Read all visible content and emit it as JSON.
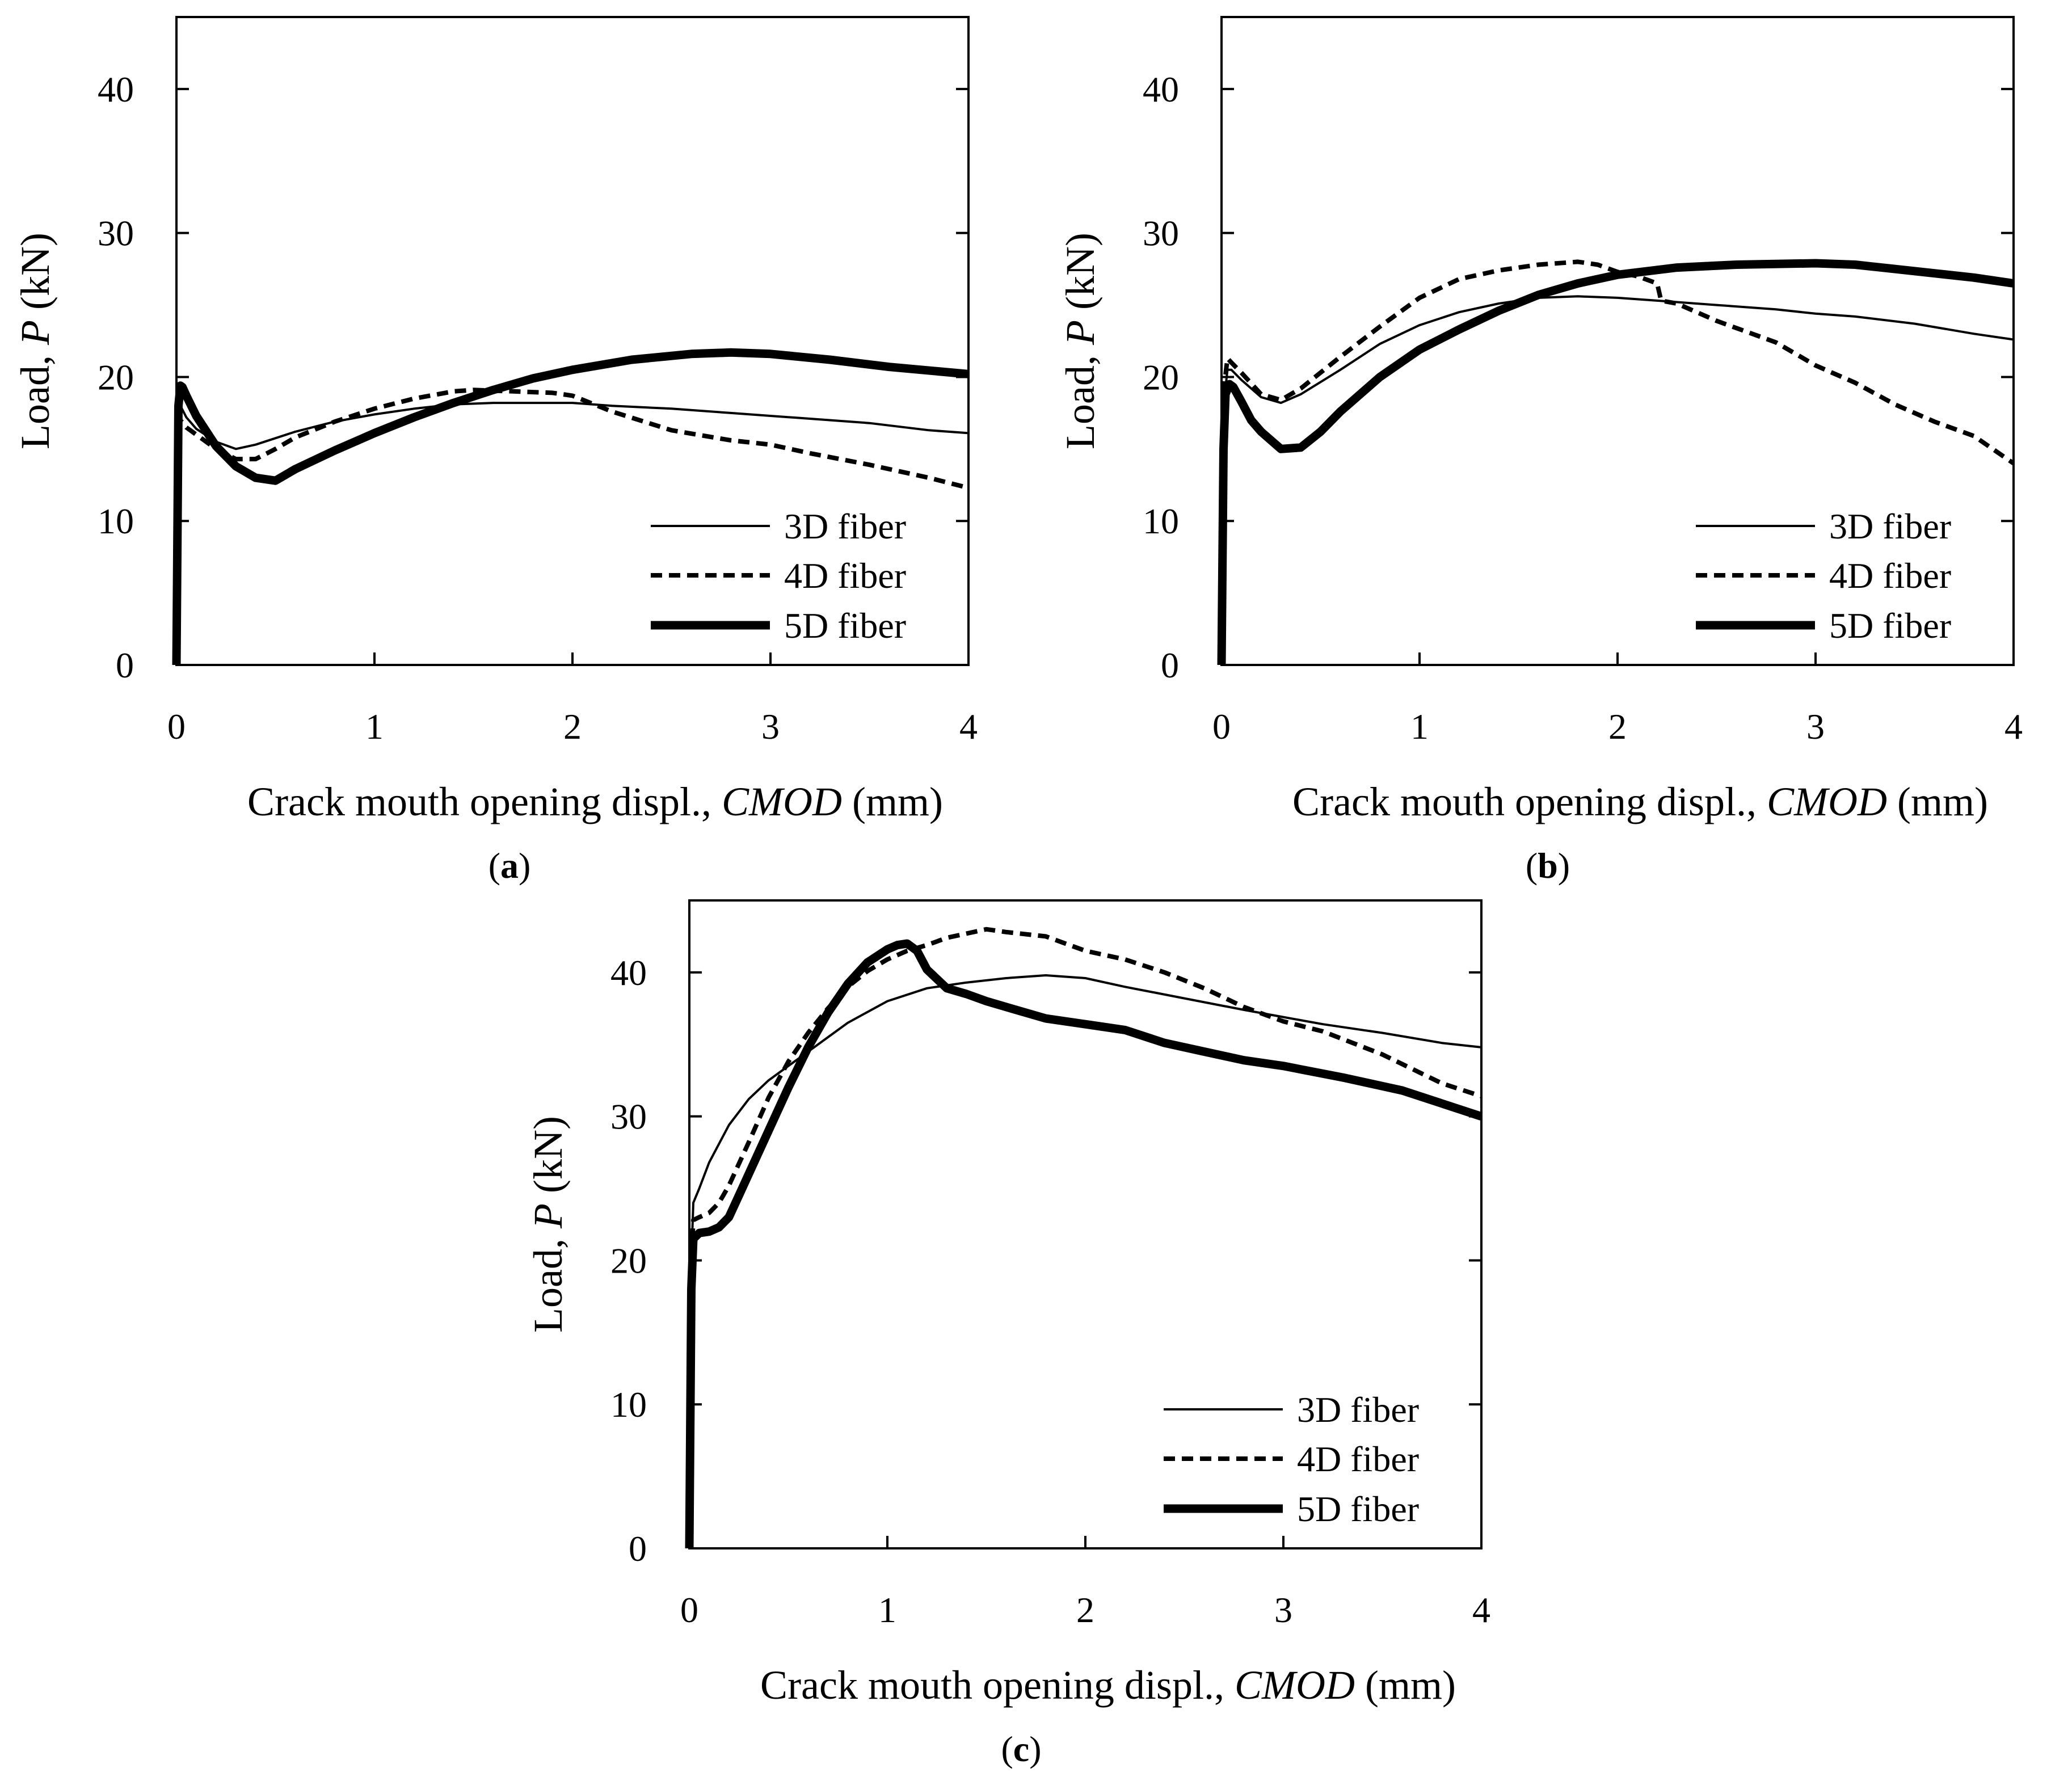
{
  "figure": {
    "xlabel_prefix": "Crack mouth opening displ., ",
    "xlabel_var": "CMOD",
    "xlabel_unit": " (mm)",
    "ylabel_prefix": "Load, ",
    "ylabel_var": "P",
    "ylabel_unit": " (kN)",
    "panel_labels": [
      "a",
      "b",
      "c"
    ],
    "colors": {
      "line": "#000000",
      "background": "#ffffff"
    }
  },
  "chart_data": [
    {
      "panel": "a",
      "type": "line",
      "xlabel": "Crack mouth opening displ., CMOD (mm)",
      "ylabel": "Load, P (kN)",
      "xlim": [
        0,
        4
      ],
      "ylim": [
        0,
        45
      ],
      "xticks": [
        0,
        1,
        2,
        3,
        4
      ],
      "yticks": [
        0,
        10,
        20,
        30,
        40
      ],
      "legend_position": "bottom-right",
      "series": [
        {
          "name": "3D fiber",
          "style": "thin",
          "x": [
            0,
            0.01,
            0.02,
            0.05,
            0.1,
            0.2,
            0.3,
            0.4,
            0.6,
            0.8,
            1.0,
            1.2,
            1.4,
            1.6,
            1.8,
            2.0,
            2.2,
            2.5,
            2.8,
            3.0,
            3.2,
            3.5,
            3.8,
            4.0
          ],
          "y": [
            0,
            16,
            18,
            17.2,
            16.4,
            15.5,
            15.0,
            15.3,
            16.2,
            16.9,
            17.4,
            17.8,
            18.1,
            18.2,
            18.2,
            18.2,
            18.0,
            17.8,
            17.5,
            17.3,
            17.1,
            16.8,
            16.3,
            16.1
          ]
        },
        {
          "name": "4D fiber",
          "style": "dashed",
          "x": [
            0,
            0.01,
            0.02,
            0.05,
            0.1,
            0.2,
            0.3,
            0.4,
            0.5,
            0.6,
            0.8,
            1.0,
            1.2,
            1.4,
            1.5,
            1.7,
            1.9,
            2.0,
            2.2,
            2.5,
            2.8,
            3.0,
            3.2,
            3.5,
            3.8,
            4.0
          ],
          "y": [
            0,
            16,
            17,
            16.5,
            16.0,
            15.0,
            14.3,
            14.3,
            15.0,
            15.8,
            16.9,
            17.8,
            18.5,
            19.0,
            19.1,
            19.0,
            18.9,
            18.7,
            17.6,
            16.3,
            15.6,
            15.3,
            14.7,
            13.9,
            13.0,
            12.3
          ]
        },
        {
          "name": "5D fiber",
          "style": "thick",
          "x": [
            0,
            0.01,
            0.02,
            0.03,
            0.05,
            0.1,
            0.2,
            0.3,
            0.4,
            0.5,
            0.6,
            0.8,
            1.0,
            1.2,
            1.4,
            1.6,
            1.8,
            2.0,
            2.3,
            2.6,
            2.8,
            3.0,
            3.3,
            3.6,
            4.0
          ],
          "y": [
            0,
            18,
            19.4,
            19.3,
            18.7,
            17.3,
            15.2,
            13.8,
            13.0,
            12.8,
            13.6,
            14.9,
            16.1,
            17.2,
            18.2,
            19.1,
            19.9,
            20.5,
            21.2,
            21.6,
            21.7,
            21.6,
            21.2,
            20.7,
            20.2
          ]
        }
      ]
    },
    {
      "panel": "b",
      "type": "line",
      "xlabel": "Crack mouth opening displ., CMOD (mm)",
      "ylabel": "Load, P (kN)",
      "xlim": [
        0,
        4
      ],
      "ylim": [
        0,
        45
      ],
      "xticks": [
        0,
        1,
        2,
        3,
        4
      ],
      "yticks": [
        0,
        10,
        20,
        30,
        40
      ],
      "legend_position": "bottom-right",
      "series": [
        {
          "name": "3D fiber",
          "style": "thin",
          "x": [
            0,
            0.01,
            0.03,
            0.05,
            0.1,
            0.2,
            0.3,
            0.4,
            0.6,
            0.8,
            1.0,
            1.2,
            1.4,
            1.6,
            1.8,
            2.0,
            2.2,
            2.5,
            2.8,
            3.0,
            3.2,
            3.5,
            3.8,
            4.0
          ],
          "y": [
            0,
            18,
            20.5,
            20.5,
            19.8,
            18.6,
            18.2,
            18.8,
            20.5,
            22.3,
            23.6,
            24.5,
            25.1,
            25.5,
            25.6,
            25.5,
            25.3,
            25.0,
            24.7,
            24.4,
            24.2,
            23.7,
            23.0,
            22.6
          ]
        },
        {
          "name": "4D fiber",
          "style": "dashed",
          "x": [
            0,
            0.01,
            0.03,
            0.05,
            0.1,
            0.2,
            0.3,
            0.4,
            0.6,
            0.8,
            1.0,
            1.2,
            1.4,
            1.6,
            1.8,
            1.9,
            2.0,
            2.1,
            2.2,
            2.22,
            2.3,
            2.5,
            2.8,
            3.0,
            3.2,
            3.4,
            3.6,
            3.8,
            4.0
          ],
          "y": [
            0,
            19,
            21.3,
            21,
            20.3,
            18.8,
            18.4,
            19.2,
            21.4,
            23.5,
            25.5,
            26.8,
            27.4,
            27.8,
            28.0,
            27.8,
            27.3,
            27.0,
            26.5,
            25.3,
            25.1,
            23.9,
            22.4,
            20.8,
            19.6,
            18.1,
            16.9,
            15.9,
            14.0
          ]
        },
        {
          "name": "5D fiber",
          "style": "thick",
          "x": [
            0,
            0.01,
            0.02,
            0.04,
            0.06,
            0.1,
            0.15,
            0.2,
            0.3,
            0.4,
            0.5,
            0.6,
            0.8,
            1.0,
            1.2,
            1.4,
            1.6,
            1.8,
            2.0,
            2.3,
            2.6,
            3.0,
            3.2,
            3.4,
            3.6,
            3.8,
            4.0
          ],
          "y": [
            0,
            15,
            18.8,
            19.5,
            19.3,
            18.3,
            17.0,
            16.2,
            15.0,
            15.1,
            16.2,
            17.6,
            20.0,
            21.9,
            23.3,
            24.6,
            25.7,
            26.5,
            27.1,
            27.6,
            27.8,
            27.9,
            27.8,
            27.5,
            27.2,
            26.9,
            26.5
          ]
        }
      ]
    },
    {
      "panel": "c",
      "type": "line",
      "xlabel": "Crack mouth opening displ., CMOD (mm)",
      "ylabel": "Load, P (kN)",
      "xlim": [
        0,
        4
      ],
      "ylim": [
        0,
        45
      ],
      "xticks": [
        0,
        1,
        2,
        3,
        4
      ],
      "yticks": [
        0,
        10,
        20,
        30,
        40
      ],
      "legend_position": "bottom-right",
      "series": [
        {
          "name": "3D fiber",
          "style": "thin",
          "x": [
            0,
            0.01,
            0.02,
            0.05,
            0.1,
            0.2,
            0.3,
            0.4,
            0.5,
            0.6,
            0.7,
            0.8,
            1.0,
            1.2,
            1.4,
            1.6,
            1.8,
            2.0,
            2.2,
            2.5,
            2.8,
            3.0,
            3.2,
            3.5,
            3.8,
            4.0
          ],
          "y": [
            0,
            20,
            24,
            25,
            26.8,
            29.4,
            31.2,
            32.5,
            33.5,
            34.5,
            35.5,
            36.5,
            38.0,
            38.9,
            39.3,
            39.6,
            39.8,
            39.6,
            39.0,
            38.2,
            37.4,
            36.9,
            36.4,
            35.8,
            35.1,
            34.8
          ]
        },
        {
          "name": "4D fiber",
          "style": "dashed",
          "x": [
            0,
            0.01,
            0.02,
            0.05,
            0.1,
            0.15,
            0.2,
            0.3,
            0.4,
            0.5,
            0.6,
            0.7,
            0.8,
            0.9,
            1.0,
            1.1,
            1.2,
            1.3,
            1.4,
            1.5,
            1.6,
            1.8,
            2.0,
            2.2,
            2.4,
            2.6,
            2.8,
            3.0,
            3.2,
            3.5,
            3.8,
            4.0
          ],
          "y": [
            0,
            20,
            22.8,
            23.0,
            23.3,
            24.0,
            25.2,
            28.2,
            31.3,
            33.8,
            35.8,
            37.5,
            39.0,
            40.1,
            40.9,
            41.5,
            41.9,
            42.4,
            42.7,
            43.0,
            42.8,
            42.5,
            41.5,
            40.9,
            40.0,
            38.9,
            37.6,
            36.6,
            35.9,
            34.3,
            32.3,
            31.4
          ]
        },
        {
          "name": "5D fiber",
          "style": "thick",
          "x": [
            0,
            0.01,
            0.02,
            0.05,
            0.1,
            0.15,
            0.2,
            0.25,
            0.3,
            0.4,
            0.5,
            0.6,
            0.7,
            0.8,
            0.9,
            1.0,
            1.05,
            1.1,
            1.15,
            1.2,
            1.3,
            1.4,
            1.5,
            1.6,
            1.8,
            2.0,
            2.2,
            2.4,
            2.6,
            2.8,
            3.0,
            3.3,
            3.6,
            4.0
          ],
          "y": [
            0,
            18,
            21.5,
            21.9,
            22.0,
            22.3,
            23.0,
            24.5,
            26.0,
            29.0,
            32.0,
            34.8,
            37.2,
            39.2,
            40.7,
            41.6,
            41.9,
            42.0,
            41.5,
            40.2,
            38.9,
            38.5,
            38.0,
            37.6,
            36.8,
            36.4,
            36.0,
            35.1,
            34.5,
            33.9,
            33.5,
            32.7,
            31.8,
            30.0
          ]
        }
      ]
    }
  ]
}
